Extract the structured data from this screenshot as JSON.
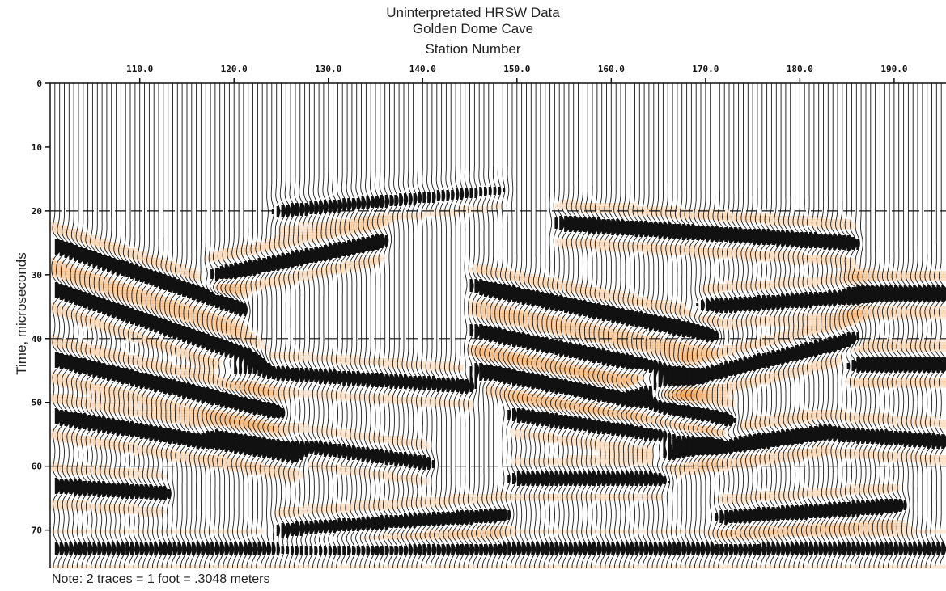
{
  "chart_data": {
    "type": "heatmap",
    "title": "Uninterpretated HRSW Data",
    "subtitle": "Golden Dome Cave",
    "xlabel": "Station Number",
    "ylabel": "Time, microseconds",
    "note": "Note: 2 traces = 1 foot = .3048 meters",
    "xlim": [
      100.5,
      195.5
    ],
    "ylim": [
      0,
      76
    ],
    "x_ticks": [
      "110.0",
      "120.0",
      "130.0",
      "140.0",
      "150.0",
      "160.0",
      "170.0",
      "180.0",
      "190.0"
    ],
    "x_tick_values": [
      110,
      120,
      130,
      140,
      150,
      160,
      170,
      180,
      190
    ],
    "y_ticks": [
      0,
      10,
      20,
      30,
      40,
      50,
      60,
      70
    ],
    "y_tick_labels": [
      "0",
      "10",
      "20",
      "30",
      "40",
      "50",
      "60",
      "70"
    ],
    "dashed_time_lines": [
      20,
      40,
      60
    ],
    "trace_spacing_stations": 0.5,
    "colors": {
      "positive_fill": "#f2a75c",
      "negative_fill": "#111111",
      "trace_line": "#1a1a1a",
      "background": "#ffffff"
    }
  }
}
